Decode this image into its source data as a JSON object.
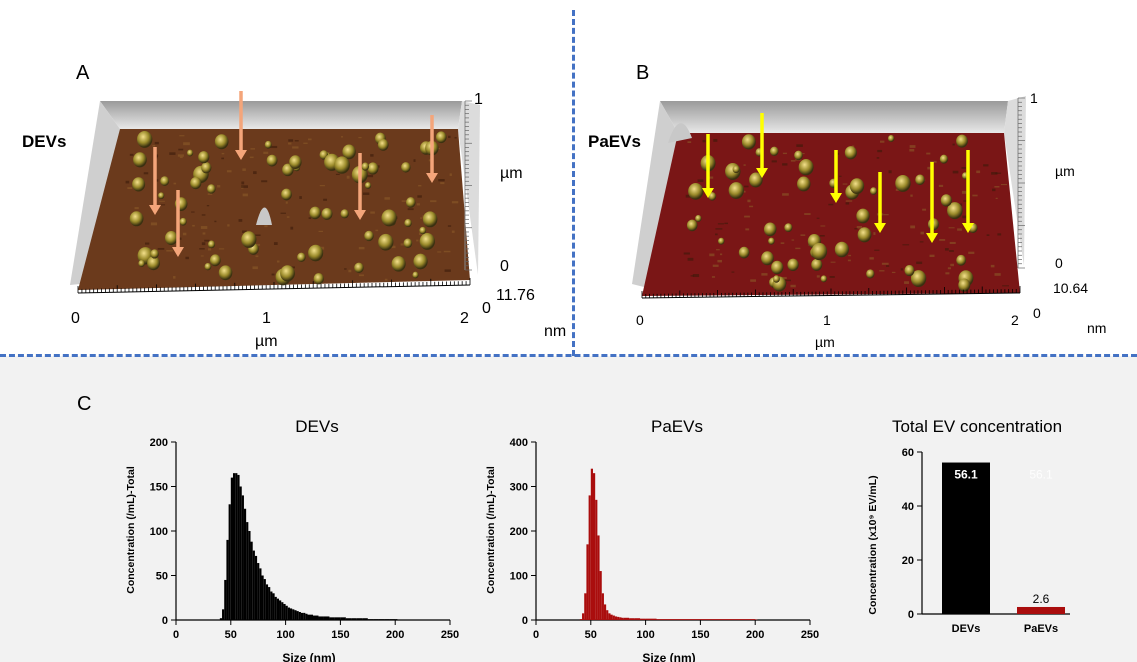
{
  "colors": {
    "divider": "#4472c4",
    "devs_bar": "#000000",
    "paevs_bar": "#aa0d0d",
    "devs_arrow": "#f4a57a",
    "paevs_arrow": "#ffff00",
    "surface_devs": "#6e3a1c",
    "surface_paevs": "#7a1616"
  },
  "panel_a": {
    "letter": "A",
    "sample": "DEVs",
    "x_ticks": [
      "0",
      "1",
      "2"
    ],
    "x_unit": "µm",
    "y_top": "1",
    "y_unit": "µm",
    "y_zero": "0",
    "z_zero": "0",
    "z_max": "11.76",
    "z_unit": "nm"
  },
  "panel_b": {
    "letter": "B",
    "sample": "PaEVs",
    "x_ticks": [
      "0",
      "1",
      "2"
    ],
    "x_unit": "µm",
    "y_top": "1",
    "y_unit": "µm",
    "y_zero": "0",
    "z_zero": "0",
    "z_max": "10.64",
    "z_unit": "nm"
  },
  "panel_c": {
    "letter": "C"
  },
  "chart_data": [
    {
      "type": "bar",
      "title": "DEVs",
      "xlabel": "Size (nm)",
      "ylabel": "Concentration (/mL)-Total",
      "xlim": [
        0,
        250
      ],
      "ylim": [
        0,
        200
      ],
      "x_ticks": [
        "0",
        "50",
        "100",
        "150",
        "200",
        "250"
      ],
      "y_ticks": [
        "0",
        "50",
        "100",
        "150",
        "200"
      ],
      "bin_width": 2,
      "x": [
        40,
        42,
        44,
        46,
        48,
        50,
        52,
        54,
        56,
        58,
        60,
        62,
        64,
        66,
        68,
        70,
        72,
        74,
        76,
        78,
        80,
        82,
        84,
        86,
        88,
        90,
        92,
        94,
        96,
        98,
        100,
        102,
        104,
        106,
        108,
        110,
        112,
        114,
        116,
        118,
        120,
        125,
        130,
        135,
        140,
        145,
        150,
        155,
        160,
        165,
        170,
        175,
        180,
        185,
        190,
        195,
        200
      ],
      "values": [
        2,
        12,
        45,
        90,
        130,
        160,
        165,
        165,
        163,
        150,
        140,
        125,
        110,
        100,
        88,
        78,
        72,
        64,
        58,
        50,
        46,
        40,
        37,
        32,
        30,
        26,
        24,
        22,
        20,
        18,
        16,
        14,
        13,
        12,
        11,
        10,
        9,
        8,
        8,
        7,
        6,
        5,
        4,
        4,
        3,
        3,
        3,
        2,
        2,
        2,
        2,
        1,
        1,
        1,
        1,
        1,
        1
      ]
    },
    {
      "type": "bar",
      "title": "PaEVs",
      "xlabel": "Size (nm)",
      "ylabel": "Concentration (/mL)-Total",
      "xlim": [
        0,
        250
      ],
      "ylim": [
        0,
        400
      ],
      "x_ticks": [
        "0",
        "50",
        "100",
        "150",
        "200",
        "250"
      ],
      "y_ticks": [
        "0",
        "100",
        "200",
        "300",
        "400"
      ],
      "bin_width": 2,
      "x": [
        40,
        42,
        44,
        46,
        48,
        50,
        52,
        54,
        56,
        58,
        60,
        62,
        64,
        66,
        68,
        70,
        72,
        74,
        76,
        78,
        80,
        85,
        90,
        95,
        100,
        110,
        120,
        130,
        140,
        150,
        160,
        170,
        180,
        190,
        200
      ],
      "values": [
        2,
        15,
        60,
        170,
        280,
        340,
        330,
        270,
        190,
        110,
        60,
        35,
        22,
        15,
        12,
        10,
        8,
        7,
        6,
        5,
        5,
        4,
        4,
        3,
        3,
        2,
        2,
        2,
        2,
        2,
        2,
        2,
        2,
        2,
        1
      ]
    },
    {
      "type": "bar",
      "title": "Total EV concentration",
      "ylabel": "Concentration (x10⁹ EV/mL)",
      "ylim": [
        0,
        60
      ],
      "y_ticks": [
        "0",
        "20",
        "40",
        "60"
      ],
      "categories": [
        "DEVs",
        "PaEVs"
      ],
      "values": [
        56.1,
        2.6
      ],
      "value_labels": [
        "56.1",
        "2.6"
      ],
      "faint_label": "56.1"
    }
  ]
}
